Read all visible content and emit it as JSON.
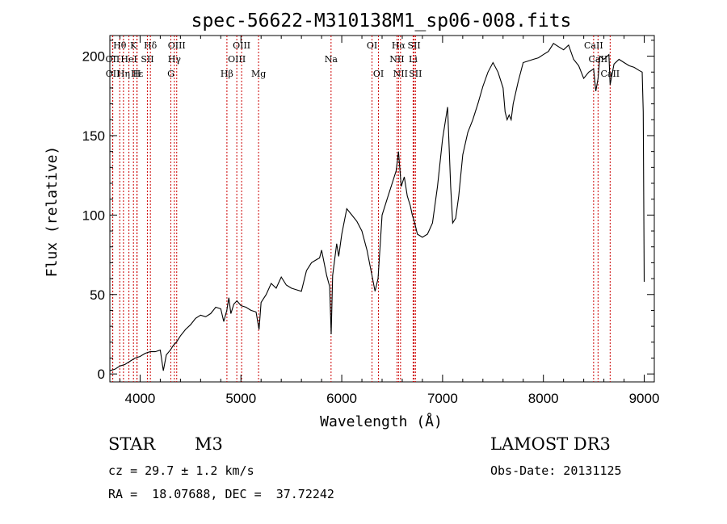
{
  "chart_data": {
    "type": "line",
    "title": "spec-56622-M310138M1_sp06-008.fits",
    "xlabel": "Wavelength (Å)",
    "ylabel": "Flux (relative)",
    "xlim": [
      3700,
      9100
    ],
    "ylim": [
      -5,
      213
    ],
    "xticks": [
      4000,
      5000,
      6000,
      7000,
      8000,
      9000
    ],
    "yticks": [
      0,
      50,
      100,
      150,
      200
    ],
    "line_color": "#000000",
    "marker_color": "#cc0000",
    "series": [
      {
        "name": "flux",
        "x": [
          3700,
          3750,
          3800,
          3850,
          3900,
          3950,
          4000,
          4050,
          4100,
          4150,
          4200,
          4230,
          4260,
          4300,
          4330,
          4360,
          4400,
          4450,
          4500,
          4550,
          4600,
          4650,
          4700,
          4750,
          4800,
          4830,
          4860,
          4880,
          4900,
          4930,
          4960,
          5000,
          5050,
          5100,
          5150,
          5180,
          5200,
          5250,
          5300,
          5350,
          5400,
          5450,
          5500,
          5550,
          5600,
          5650,
          5700,
          5750,
          5780,
          5800,
          5850,
          5880,
          5895,
          5910,
          5930,
          5950,
          5970,
          6000,
          6050,
          6100,
          6150,
          6200,
          6250,
          6300,
          6330,
          6360,
          6400,
          6450,
          6500,
          6540,
          6563,
          6590,
          6620,
          6650,
          6680,
          6700,
          6720,
          6750,
          6800,
          6850,
          6900,
          6950,
          7000,
          7050,
          7080,
          7100,
          7130,
          7160,
          7200,
          7250,
          7300,
          7350,
          7400,
          7450,
          7500,
          7550,
          7600,
          7620,
          7640,
          7660,
          7680,
          7700,
          7750,
          7800,
          7850,
          7900,
          7950,
          8000,
          8050,
          8100,
          8150,
          8200,
          8250,
          8300,
          8350,
          8400,
          8450,
          8498,
          8520,
          8542,
          8560,
          8600,
          8650,
          8662,
          8700,
          8750,
          8800,
          8850,
          8900,
          8950,
          8980,
          8990,
          9000
        ],
        "y": [
          2,
          3,
          5,
          6,
          8,
          10,
          11,
          13,
          14,
          14,
          15,
          2,
          12,
          15,
          18,
          20,
          24,
          28,
          31,
          35,
          37,
          36,
          38,
          42,
          41,
          33,
          40,
          48,
          38,
          44,
          46,
          43,
          42,
          40,
          39,
          28,
          45,
          50,
          57,
          54,
          61,
          56,
          54,
          53,
          52,
          65,
          70,
          72,
          73,
          78,
          62,
          55,
          25,
          62,
          72,
          82,
          74,
          88,
          104,
          100,
          96,
          90,
          78,
          62,
          52,
          60,
          100,
          110,
          120,
          128,
          140,
          118,
          124,
          112,
          106,
          100,
          96,
          88,
          86,
          88,
          95,
          118,
          148,
          168,
          118,
          95,
          98,
          112,
          138,
          152,
          160,
          170,
          181,
          190,
          196,
          190,
          180,
          165,
          160,
          163,
          160,
          170,
          184,
          196,
          197,
          198,
          199,
          201,
          203,
          208,
          206,
          204,
          207,
          198,
          194,
          186,
          190,
          192,
          178,
          186,
          200,
          198,
          201,
          182,
          195,
          198,
          196,
          194,
          193,
          191,
          190,
          165,
          58
        ]
      }
    ],
    "spectral_lines": [
      {
        "label": "Hθ",
        "wavelength": 3798,
        "row": 1
      },
      {
        "label": "OII",
        "wavelength": 3727,
        "row": 2
      },
      {
        "label": "OII",
        "wavelength": 3729,
        "row": 3
      },
      {
        "label": "HeI",
        "wavelength": 3889,
        "row": 2
      },
      {
        "label": "Hε",
        "wavelength": 3970,
        "row": 3
      },
      {
        "label": "K",
        "wavelength": 3934,
        "row": 1
      },
      {
        "label": "H",
        "wavelength": 3968,
        "row": 3
      },
      {
        "label": "SII",
        "wavelength": 4072,
        "row": 2
      },
      {
        "label": "Hδ",
        "wavelength": 4102,
        "row": 1
      },
      {
        "label": "Hη",
        "wavelength": 3835,
        "row": 3
      },
      {
        "label": "OIII",
        "wavelength": 4363,
        "row": 1
      },
      {
        "label": "Hγ",
        "wavelength": 4340,
        "row": 2
      },
      {
        "label": "G",
        "wavelength": 4305,
        "row": 3
      },
      {
        "label": "Hβ",
        "wavelength": 4861,
        "row": 3
      },
      {
        "label": "OIII",
        "wavelength": 5007,
        "row": 1
      },
      {
        "label": "OIII",
        "wavelength": 4959,
        "row": 2
      },
      {
        "label": "Mg",
        "wavelength": 5175,
        "row": 3
      },
      {
        "label": "Na",
        "wavelength": 5894,
        "row": 2
      },
      {
        "label": "OI",
        "wavelength": 6300,
        "row": 1
      },
      {
        "label": "OI",
        "wavelength": 6364,
        "row": 3
      },
      {
        "label": "Hα",
        "wavelength": 6563,
        "row": 1
      },
      {
        "label": "NII",
        "wavelength": 6548,
        "row": 2
      },
      {
        "label": "NII",
        "wavelength": 6583,
        "row": 3
      },
      {
        "label": "SII",
        "wavelength": 6717,
        "row": 1
      },
      {
        "label": "Li",
        "wavelength": 6708,
        "row": 2
      },
      {
        "label": "SII",
        "wavelength": 6731,
        "row": 3
      },
      {
        "label": "CaII",
        "wavelength": 8498,
        "row": 1
      },
      {
        "label": "CaII",
        "wavelength": 8542,
        "row": 2
      },
      {
        "label": "CaII",
        "wavelength": 8662,
        "row": 3
      }
    ]
  },
  "info": {
    "object_class": "STAR",
    "subclass": "M3",
    "survey": "LAMOST DR3",
    "redshift": "cz = 29.7 ± 1.2 km/s",
    "obs_date": "Obs-Date: 20131125",
    "coords": "RA =  18.07688, DEC =  37.72242"
  }
}
